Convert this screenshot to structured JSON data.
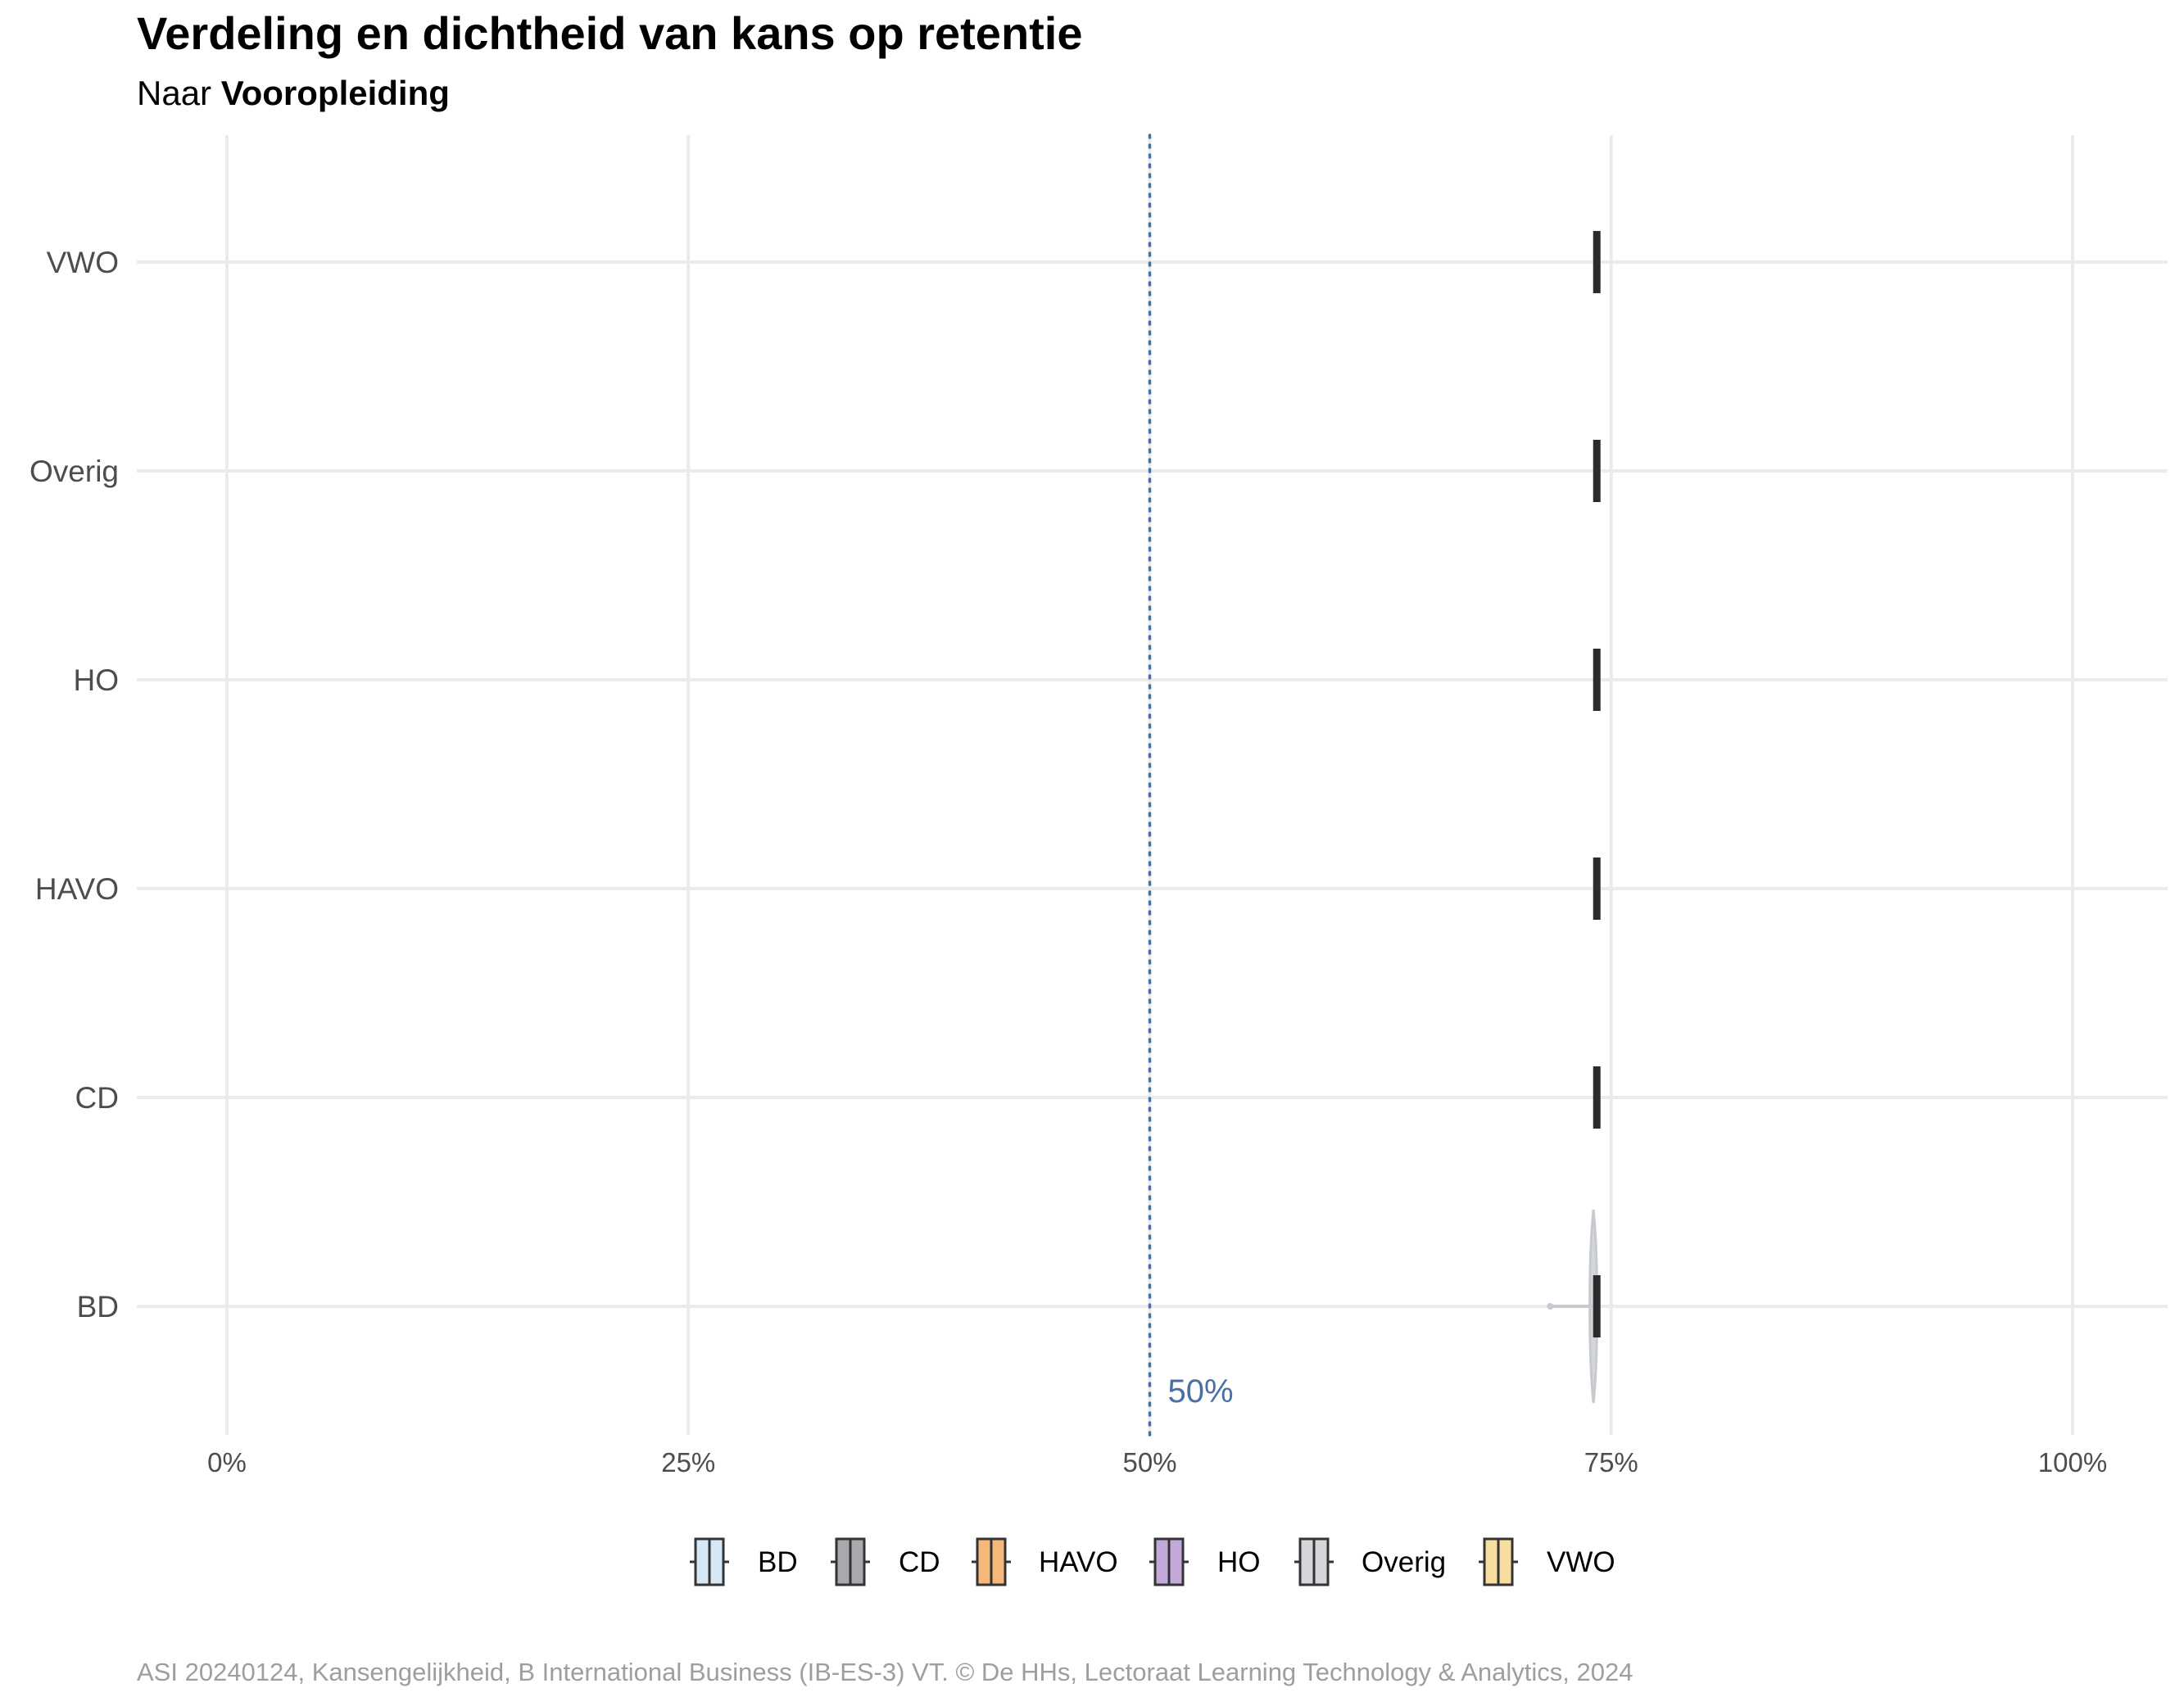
{
  "title": "Verdeling en dichtheid van kans op retentie",
  "subtitle_prefix": "Naar",
  "subtitle_group": "Vooropleiding",
  "caption": "ASI 20240124, Kansengelijkheid, B International Business (IB-ES-3) VT. © De HHs, Lectoraat Learning Technology & Analytics, 2024",
  "chart_data": {
    "type": "violin-boxplot",
    "orientation": "horizontal",
    "categories": [
      "BD",
      "CD",
      "HAVO",
      "HO",
      "Overig",
      "VWO"
    ],
    "x_ticks": [
      0,
      0.25,
      0.5,
      0.75,
      1
    ],
    "x_tick_labels": [
      "0%",
      "25%",
      "50%",
      "75%",
      "100%"
    ],
    "xlim": [
      -0.05,
      1.05
    ],
    "median": [
      0.742,
      0.742,
      0.742,
      0.742,
      0.742,
      0.742
    ],
    "whisker_low": [
      0.717,
      null,
      null,
      null,
      null,
      null
    ],
    "violin_range": [
      0.735,
      0.744
    ],
    "reference_line": {
      "value": 0.5,
      "label": "50%",
      "color": "#4a6fa5",
      "style": "dotted"
    },
    "legend": {
      "position": "bottom",
      "entries": [
        {
          "label": "BD",
          "color": "#d6e8f5"
        },
        {
          "label": "CD",
          "color": "#a7a9ac"
        },
        {
          "label": "HAVO",
          "color": "#f4b87a"
        },
        {
          "label": "HO",
          "color": "#c3a9d9"
        },
        {
          "label": "Overig",
          "color": "#d4d6d9"
        },
        {
          "label": "VWO",
          "color": "#f7dda0"
        }
      ]
    },
    "grid": true
  }
}
